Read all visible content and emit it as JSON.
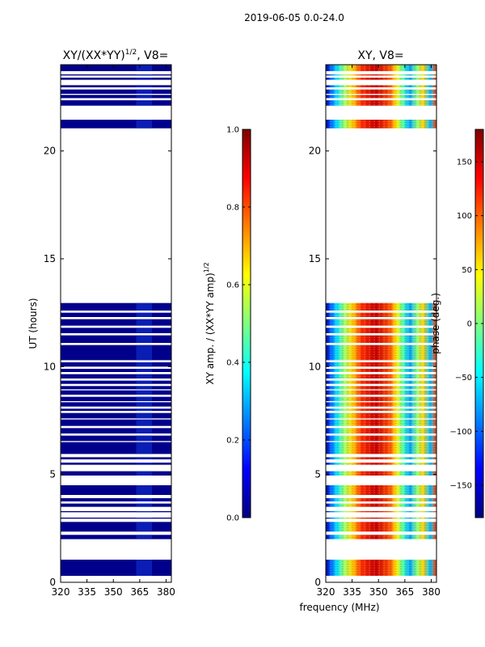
{
  "figure": {
    "suptitle": "2019-06-05 0.0-24.0",
    "shared_xlabel": "frequency (MHz)"
  },
  "colors": {
    "amp_background": "#00008b",
    "frame": "#000000"
  },
  "chart_data": [
    {
      "type": "heatmap",
      "id": "amp",
      "title_main": "XY/(XX*YY)",
      "title_exp": "1/2",
      "title_tail": ", V8=",
      "ylabel": "UT (hours)",
      "xlim": [
        320,
        383
      ],
      "ylim": [
        0,
        24
      ],
      "xticks": [
        320,
        335,
        350,
        365,
        380
      ],
      "yticks": [
        0,
        5,
        10,
        15,
        20
      ],
      "data_bands_hours": [
        [
          0.3,
          1.05
        ],
        [
          2.0,
          2.2
        ],
        [
          2.35,
          2.8
        ],
        [
          2.95,
          3.0
        ],
        [
          3.25,
          3.3
        ],
        [
          3.5,
          3.65
        ],
        [
          3.75,
          3.9
        ],
        [
          4.05,
          4.5
        ],
        [
          4.95,
          5.15
        ],
        [
          5.45,
          5.55
        ],
        [
          5.7,
          5.8
        ],
        [
          5.95,
          6.5
        ],
        [
          6.55,
          6.8
        ],
        [
          6.9,
          7.15
        ],
        [
          7.25,
          7.55
        ],
        [
          7.6,
          7.85
        ],
        [
          7.95,
          8.05
        ],
        [
          8.15,
          8.35
        ],
        [
          8.4,
          8.6
        ],
        [
          8.7,
          8.9
        ],
        [
          8.95,
          9.1
        ],
        [
          9.2,
          9.35
        ],
        [
          9.45,
          9.65
        ],
        [
          9.75,
          9.9
        ],
        [
          10.0,
          10.2
        ],
        [
          10.3,
          11.0
        ],
        [
          11.1,
          11.45
        ],
        [
          11.55,
          11.8
        ],
        [
          11.9,
          12.2
        ],
        [
          12.3,
          12.5
        ],
        [
          12.6,
          12.95
        ],
        [
          21.05,
          21.45
        ],
        [
          22.1,
          22.35
        ],
        [
          22.45,
          22.6
        ],
        [
          22.65,
          22.85
        ],
        [
          22.95,
          23.05
        ],
        [
          23.3,
          23.4
        ],
        [
          23.5,
          23.55
        ],
        [
          23.7,
          24.0
        ]
      ],
      "colorbar": {
        "label_main": "XY amp. / (XX*YY amp)",
        "label_exp": "1/2",
        "range": [
          0.0,
          1.0
        ],
        "ticks": [
          "0.0",
          "0.2",
          "0.4",
          "0.6",
          "0.8",
          "1.0"
        ],
        "tick_values": [
          0.0,
          0.2,
          0.4,
          0.6,
          0.8,
          1.0
        ]
      }
    },
    {
      "type": "heatmap",
      "id": "phase",
      "title": "XY, V8=",
      "xlim": [
        320,
        383
      ],
      "ylim": [
        0,
        24
      ],
      "xticks": [
        320,
        335,
        350,
        365,
        380
      ],
      "yticks": [
        0,
        5,
        10,
        15,
        20
      ],
      "data_bands_hours": [
        [
          0.3,
          1.05
        ],
        [
          2.0,
          2.2
        ],
        [
          2.35,
          2.8
        ],
        [
          2.95,
          3.0
        ],
        [
          3.25,
          3.3
        ],
        [
          3.5,
          3.65
        ],
        [
          3.75,
          3.9
        ],
        [
          4.05,
          4.5
        ],
        [
          4.95,
          5.15
        ],
        [
          5.45,
          5.55
        ],
        [
          5.7,
          5.8
        ],
        [
          5.95,
          6.5
        ],
        [
          6.55,
          6.8
        ],
        [
          6.9,
          7.15
        ],
        [
          7.25,
          7.55
        ],
        [
          7.6,
          7.85
        ],
        [
          7.95,
          8.05
        ],
        [
          8.15,
          8.35
        ],
        [
          8.4,
          8.6
        ],
        [
          8.7,
          8.9
        ],
        [
          8.95,
          9.1
        ],
        [
          9.2,
          9.35
        ],
        [
          9.45,
          9.65
        ],
        [
          9.75,
          9.9
        ],
        [
          10.0,
          10.2
        ],
        [
          10.3,
          11.0
        ],
        [
          11.1,
          11.45
        ],
        [
          11.55,
          11.8
        ],
        [
          11.9,
          12.2
        ],
        [
          12.3,
          12.5
        ],
        [
          12.6,
          12.95
        ],
        [
          21.05,
          21.45
        ],
        [
          22.1,
          22.35
        ],
        [
          22.45,
          22.6
        ],
        [
          22.65,
          22.85
        ],
        [
          22.95,
          23.05
        ],
        [
          23.3,
          23.4
        ],
        [
          23.5,
          23.55
        ],
        [
          23.7,
          24.0
        ]
      ],
      "colorbar": {
        "label": "phase (deg.)",
        "range": [
          -180,
          180
        ],
        "ticks": [
          "−150",
          "−100",
          "−50",
          "0",
          "50",
          "100",
          "150"
        ],
        "tick_values": [
          -150,
          -100,
          -50,
          0,
          50,
          100,
          150
        ]
      }
    }
  ]
}
